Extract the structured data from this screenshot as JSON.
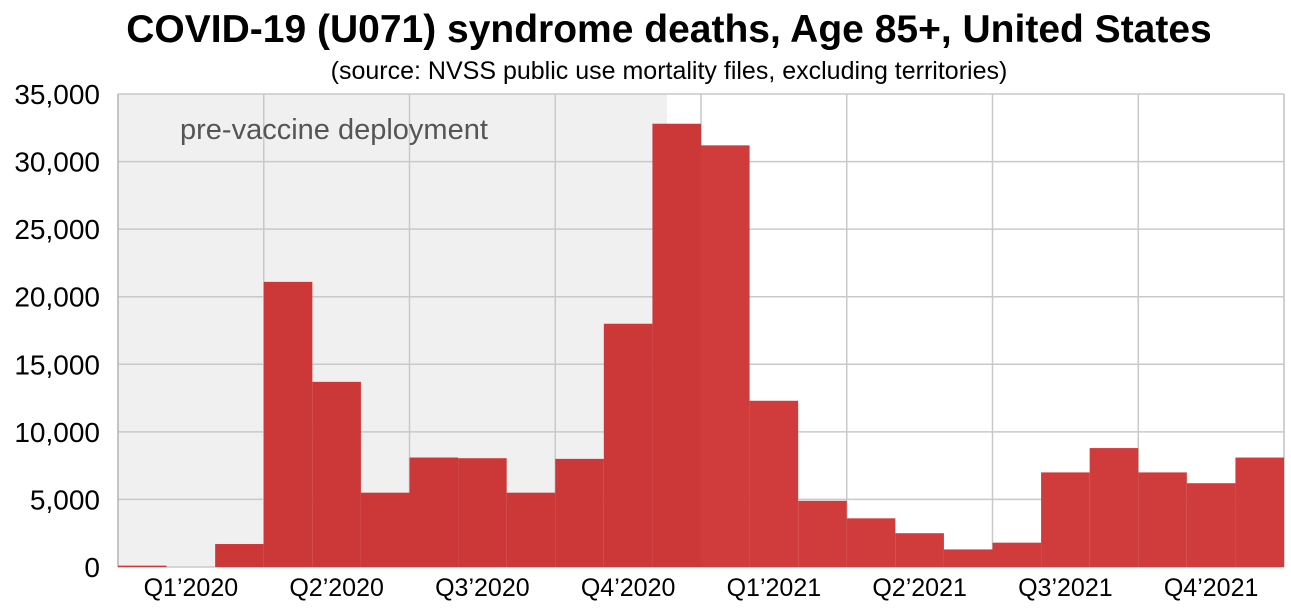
{
  "chart_data": {
    "type": "bar",
    "title": "COVID-19 (U071) syndrome deaths, Age 85+, United States",
    "subtitle": "(source: NVSS public use mortality files, excluding territories)",
    "xlabel": "",
    "ylabel": "",
    "ylim": [
      0,
      35000
    ],
    "y_ticks": [
      0,
      5000,
      10000,
      15000,
      20000,
      25000,
      30000,
      35000
    ],
    "y_tick_labels": [
      "0",
      "5,000",
      "10,000",
      "15,000",
      "20,000",
      "25,000",
      "30,000",
      "35,000"
    ],
    "x_tick_labels": [
      "Q1’2020",
      "Q2’2020",
      "Q3’2020",
      "Q4’2020",
      "Q1’2021",
      "Q2’2021",
      "Q3’2021",
      "Q4’2021"
    ],
    "categories": [
      "2020-01",
      "2020-02",
      "2020-03",
      "2020-04",
      "2020-05",
      "2020-06",
      "2020-07",
      "2020-08",
      "2020-09",
      "2020-10",
      "2020-11",
      "2020-12",
      "2021-01",
      "2021-02",
      "2021-03",
      "2021-04",
      "2021-05",
      "2021-06",
      "2021-07",
      "2021-08",
      "2021-09",
      "2021-10",
      "2021-11",
      "2021-12"
    ],
    "values": [
      100,
      0,
      1700,
      21100,
      13700,
      5500,
      8100,
      8050,
      5500,
      8000,
      18000,
      32800,
      31200,
      12300,
      4900,
      3600,
      2500,
      1300,
      1800,
      7000,
      8800,
      7000,
      6200,
      8100
    ],
    "annotation": "pre-vaccine deployment",
    "shaded_region_month_range": [
      1,
      12.3
    ],
    "bar_color": "#d03b3b",
    "bar_color_shaded": "#cc3838",
    "shade_color": "#f0f0f0",
    "grid": true,
    "legend": "none"
  }
}
